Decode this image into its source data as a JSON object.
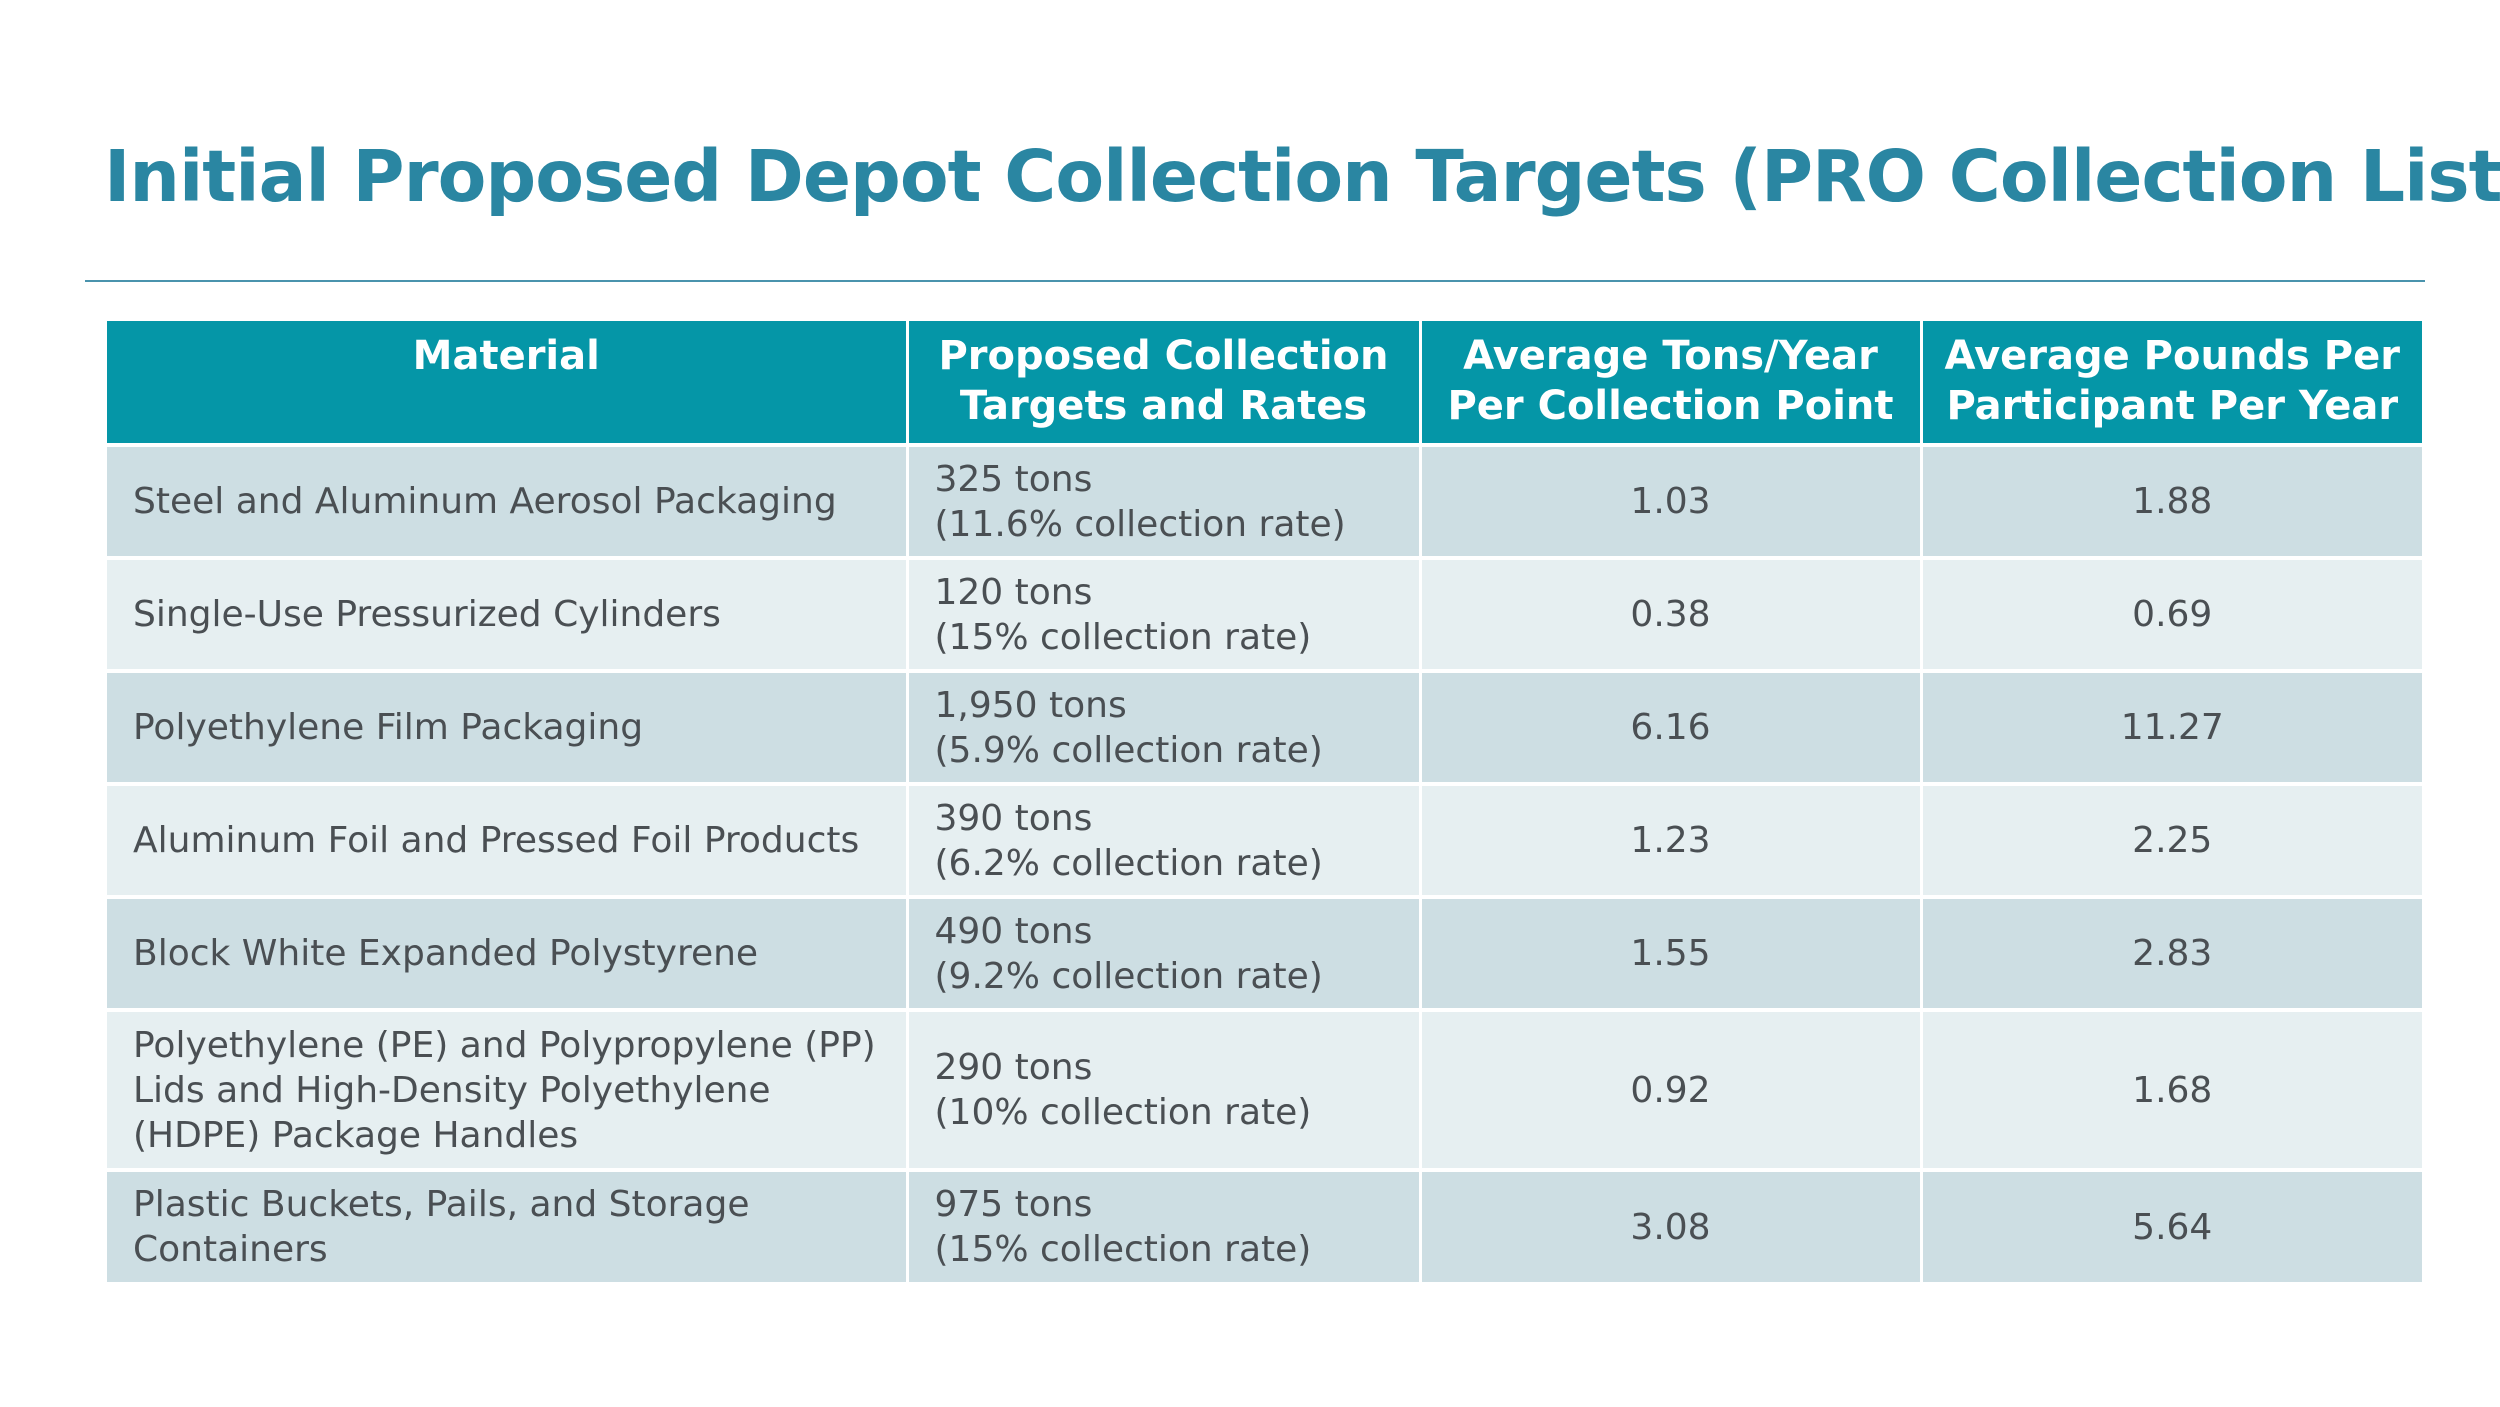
{
  "title": "Initial Proposed Depot Collection Targets (PRO Collection List)",
  "table": {
    "headers": [
      "Material",
      "Proposed Collection Targets and Rates",
      "Average Tons/Year Per Collection Point",
      "Average Pounds Per Participant Per Year"
    ],
    "rows": [
      {
        "material": "Steel and Aluminum Aerosol Packaging",
        "target_tons": "325 tons",
        "target_rate": "(11.6% collection rate)",
        "avg_tons": "1.03",
        "avg_pounds": "1.88"
      },
      {
        "material": "Single-Use Pressurized Cylinders",
        "target_tons": "120 tons",
        "target_rate": "(15% collection rate)",
        "avg_tons": "0.38",
        "avg_pounds": "0.69"
      },
      {
        "material": "Polyethylene Film Packaging",
        "target_tons": "1,950 tons",
        "target_rate": "(5.9% collection rate)",
        "avg_tons": "6.16",
        "avg_pounds": "11.27"
      },
      {
        "material": "Aluminum Foil and Pressed Foil Products",
        "target_tons": "390 tons",
        "target_rate": "(6.2% collection rate)",
        "avg_tons": "1.23",
        "avg_pounds": "2.25"
      },
      {
        "material": "Block White Expanded Polystyrene",
        "target_tons": "490 tons",
        "target_rate": "(9.2% collection rate)",
        "avg_tons": "1.55",
        "avg_pounds": "2.83"
      },
      {
        "material": "Polyethylene (PE) and Polypropylene (PP) Lids and High-Density Polyethylene (HDPE) Package Handles",
        "target_tons": "290 tons",
        "target_rate": "(10% collection rate)",
        "avg_tons": "0.92",
        "avg_pounds": "1.68"
      },
      {
        "material": "Plastic Buckets, Pails, and Storage Containers",
        "target_tons": "975 tons",
        "target_rate": "(15% collection rate)",
        "avg_tons": "3.08",
        "avg_pounds": "5.64"
      }
    ]
  },
  "colors": {
    "title": "#2a86a2",
    "header_bg": "#0596a7",
    "row_dark": "#cddee3",
    "row_light": "#e6eff1",
    "body_text": "#4a4f53"
  }
}
